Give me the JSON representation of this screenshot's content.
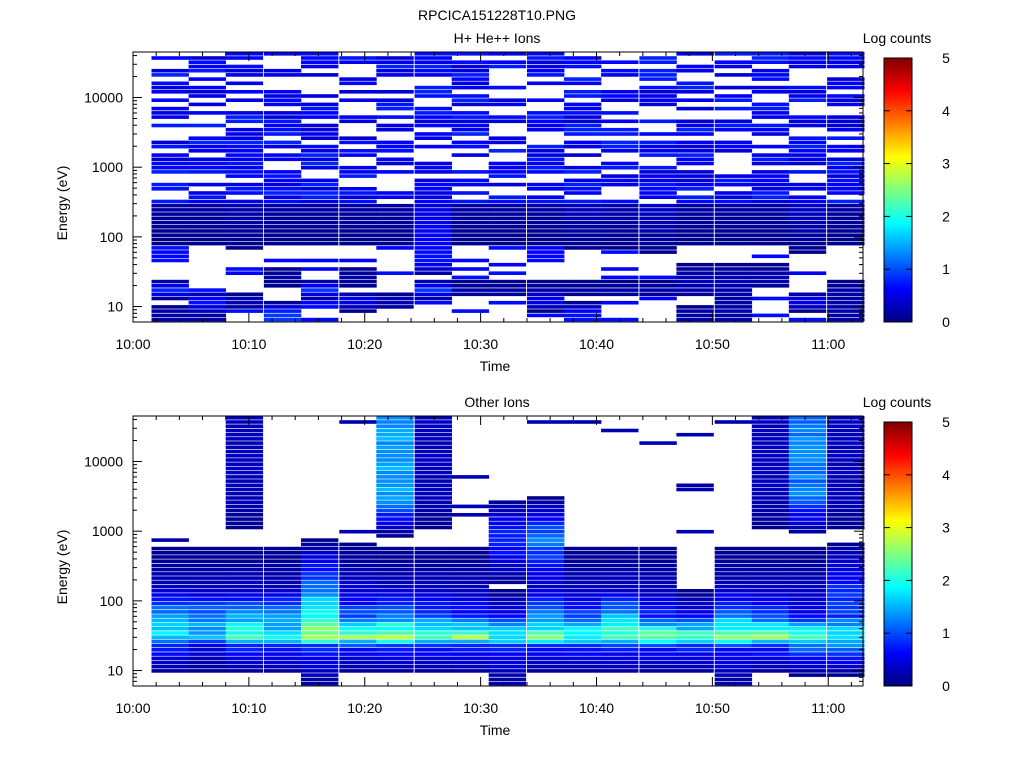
{
  "figure_title": "RPCICA151228T10.PNG",
  "colors": {
    "colormap": [
      "#00007f",
      "#0000ff",
      "#007fff",
      "#00ffff",
      "#7fff7f",
      "#ffff00",
      "#ff7f00",
      "#ff0000",
      "#7f0000"
    ],
    "background": "#ffffff",
    "axis": "#000000"
  },
  "chart_data": [
    {
      "type": "heatmap",
      "title": "H+ He++ Ions",
      "xlabel": "Time",
      "ylabel": "Energy (eV)",
      "x_ticks": [
        "10:00",
        "10:10",
        "10:20",
        "10:30",
        "10:40",
        "10:50",
        "11:00"
      ],
      "x_range_minutes": [
        0,
        63
      ],
      "y_scale": "log",
      "y_ticks": [
        10,
        100,
        1000,
        10000
      ],
      "y_range": [
        6,
        45000
      ],
      "colorbar": {
        "label": "Log counts",
        "range": [
          0,
          5
        ],
        "ticks": [
          0,
          1,
          2,
          3,
          4,
          5
        ]
      },
      "time_bins_start_minutes": [
        1.6,
        4.8,
        8.0,
        11.3,
        14.5,
        17.8,
        21.0,
        24.3,
        27.5,
        30.7,
        34.0,
        37.2,
        40.4,
        43.7,
        46.9,
        50.2,
        53.4,
        56.6,
        59.9
      ],
      "bin_width_minutes": 3.2,
      "sample_rows": [
        {
          "energy": 8,
          "values": [
            0.2,
            0.2,
            0,
            0.9,
            0,
            0,
            0,
            0,
            0,
            0,
            0,
            0.7,
            0,
            0,
            0.2,
            0.2,
            0,
            0,
            0.2
          ]
        },
        {
          "energy": 12,
          "values": [
            0,
            0.8,
            0.3,
            0,
            0,
            0.6,
            0.3,
            0,
            0,
            0,
            0.6,
            0,
            0,
            0,
            0,
            0.2,
            0,
            0.6,
            0.2
          ]
        },
        {
          "energy": 17,
          "values": [
            0.8,
            0,
            0,
            0,
            0.9,
            0,
            0,
            0.9,
            0.2,
            0.2,
            0.2,
            0.2,
            0.2,
            0.2,
            0.2,
            0.2,
            0,
            0,
            0.2
          ]
        },
        {
          "energy": 25,
          "values": [
            0,
            0,
            0,
            0.2,
            0,
            0.2,
            0,
            0,
            0,
            0,
            0,
            0,
            0,
            0,
            0.3,
            0.3,
            0.3,
            0,
            0
          ]
        },
        {
          "energy": 45,
          "values": [
            0,
            0,
            0,
            0,
            0,
            0,
            0,
            0.7,
            0,
            0,
            0,
            0,
            0,
            0,
            0,
            0,
            0,
            0,
            0
          ]
        },
        {
          "energy": 1000,
          "values": [
            0.3,
            0.3,
            0.4,
            0.3,
            0.3,
            0.3,
            0.3,
            0.3,
            0.3,
            0.3,
            0.3,
            0.5,
            0.4,
            0.6,
            0.3,
            0.3,
            0.3,
            0.6,
            0.3
          ]
        },
        {
          "energy": 10000,
          "values": [
            0.3,
            0.5,
            0.3,
            0.3,
            0.5,
            0.3,
            0.4,
            0.3,
            0.3,
            0.4,
            0.3,
            0.4,
            0.3,
            0.3,
            0.6,
            0.3,
            0.3,
            0.3,
            0.3
          ]
        }
      ]
    },
    {
      "type": "heatmap",
      "title": "Other Ions",
      "xlabel": "Time",
      "ylabel": "Energy (eV)",
      "x_ticks": [
        "10:00",
        "10:10",
        "10:20",
        "10:30",
        "10:40",
        "10:50",
        "11:00"
      ],
      "x_range_minutes": [
        0,
        63
      ],
      "y_scale": "log",
      "y_ticks": [
        10,
        100,
        1000,
        10000
      ],
      "y_range": [
        6,
        45000
      ],
      "colorbar": {
        "label": "Log counts",
        "range": [
          0,
          5
        ],
        "ticks": [
          0,
          1,
          2,
          3,
          4,
          5
        ]
      },
      "time_bins_start_minutes": [
        1.6,
        4.8,
        8.0,
        11.3,
        14.5,
        17.8,
        21.0,
        24.3,
        27.5,
        30.7,
        34.0,
        37.2,
        40.4,
        43.7,
        46.9,
        50.2,
        53.4,
        56.6,
        59.9
      ],
      "bin_width_minutes": 3.2,
      "sample_rows": [
        {
          "energy": 8,
          "values": [
            0,
            0,
            0,
            0,
            0.2,
            0,
            0,
            0,
            0,
            0.2,
            0,
            0,
            0,
            0,
            0,
            0.2,
            0,
            0,
            0
          ]
        },
        {
          "energy": 22,
          "values": [
            0.8,
            0.5,
            0.8,
            0.8,
            0.8,
            0.8,
            0.8,
            0.8,
            0.8,
            0.8,
            0.8,
            0.8,
            0.8,
            0.8,
            0.8,
            0.8,
            0.8,
            1.2,
            1.2
          ]
        },
        {
          "energy": 30,
          "values": [
            1.8,
            1.6,
            2.2,
            1.8,
            3.0,
            2.6,
            2.8,
            2.4,
            2.5,
            2.0,
            2.4,
            2.1,
            2.3,
            2.4,
            2.3,
            2.6,
            2.5,
            2.3,
            2.0
          ]
        },
        {
          "energy": 60,
          "values": [
            1.5,
            1.3,
            1.4,
            1.3,
            2.0,
            1.0,
            1.2,
            1.0,
            0.8,
            0.6,
            1.3,
            1.0,
            1.4,
            0.8,
            0.6,
            1.2,
            1.0,
            0.6,
            0.9
          ]
        },
        {
          "energy": 150,
          "values": [
            0.3,
            0.3,
            0.3,
            0.3,
            1.2,
            0.4,
            0.3,
            0.3,
            0.3,
            0,
            0.3,
            0.3,
            0.3,
            0.3,
            0,
            0.3,
            0.3,
            0.3,
            0.8
          ]
        },
        {
          "energy": 800,
          "values": [
            0,
            0,
            0,
            0,
            0,
            0,
            0,
            0,
            0,
            0.9,
            1.2,
            0,
            0,
            0,
            0,
            0,
            0,
            0,
            0
          ]
        },
        {
          "energy": 3200,
          "values": [
            0,
            0,
            0.3,
            0,
            0,
            0,
            1.4,
            0.3,
            0,
            0,
            0,
            0,
            0,
            0,
            0,
            0,
            0.3,
            1.2,
            0.3
          ]
        }
      ]
    }
  ]
}
